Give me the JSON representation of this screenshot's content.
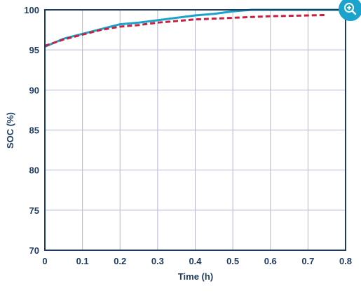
{
  "colors": {
    "text": "#1e3a5f",
    "grid": "#b5b8d4",
    "axis": "#1e3a5f",
    "series_solid": "#1aa3cc",
    "series_dashed": "#c8203e",
    "zoom_button": "#1aa3cc"
  },
  "zoom_button": {
    "icon": "zoom-in-icon"
  },
  "chart_data": {
    "type": "line",
    "title": "",
    "xlabel": "Time (h)",
    "ylabel": "SOC (%)",
    "xlim": [
      0,
      0.8
    ],
    "ylim": [
      70,
      100
    ],
    "x_ticks": [
      "0",
      "0.1",
      "0.2",
      "0.3",
      "0.4",
      "0.5",
      "0.6",
      "0.7",
      "0.8"
    ],
    "y_ticks": [
      "70",
      "75",
      "80",
      "85",
      "90",
      "95",
      "100"
    ],
    "grid": true,
    "legend": "none",
    "series": [
      {
        "style": "solid",
        "color": "#1aa3cc",
        "points": [
          [
            0,
            95.4
          ],
          [
            0.05,
            96.4
          ],
          [
            0.1,
            97.0
          ],
          [
            0.15,
            97.6
          ],
          [
            0.2,
            98.2
          ],
          [
            0.25,
            98.4
          ],
          [
            0.3,
            98.7
          ],
          [
            0.35,
            99.0
          ],
          [
            0.4,
            99.3
          ],
          [
            0.45,
            99.5
          ],
          [
            0.5,
            99.8
          ],
          [
            0.55,
            100
          ],
          [
            0.6,
            100
          ],
          [
            0.65,
            100
          ],
          [
            0.7,
            100
          ],
          [
            0.75,
            100
          ],
          [
            0.8,
            100
          ]
        ]
      },
      {
        "style": "dashed",
        "color": "#c8203e",
        "points": [
          [
            0,
            95.5
          ],
          [
            0.05,
            96.3
          ],
          [
            0.1,
            96.9
          ],
          [
            0.15,
            97.5
          ],
          [
            0.2,
            97.9
          ],
          [
            0.25,
            98.1
          ],
          [
            0.3,
            98.4
          ],
          [
            0.35,
            98.6
          ],
          [
            0.4,
            98.8
          ],
          [
            0.45,
            98.9
          ],
          [
            0.5,
            99.0
          ],
          [
            0.55,
            99.1
          ],
          [
            0.6,
            99.2
          ],
          [
            0.65,
            99.25
          ],
          [
            0.7,
            99.3
          ],
          [
            0.75,
            99.35
          ]
        ]
      }
    ]
  }
}
